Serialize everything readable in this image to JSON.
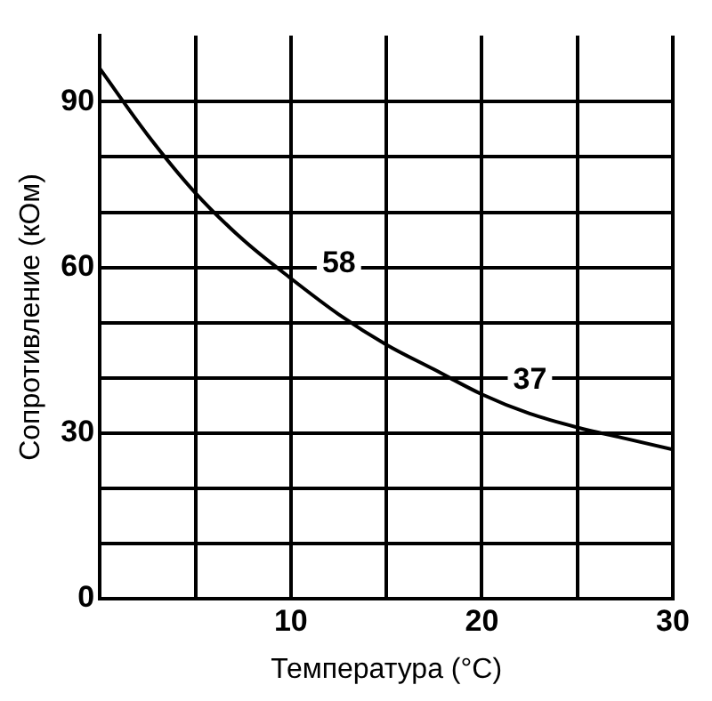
{
  "chart_data": {
    "type": "line",
    "xlabel": "Температура (°C)",
    "ylabel": "Сопротивление (кОм)",
    "x": [
      0,
      2.5,
      5,
      7.5,
      10,
      12.5,
      15,
      17.5,
      20,
      22.5,
      25,
      27.5,
      30
    ],
    "series": [
      {
        "color": "#000000",
        "values": [
          96,
          84,
          73.5,
          65,
          58,
          51.5,
          46,
          41.5,
          37,
          33.5,
          31,
          29,
          27
        ]
      }
    ],
    "xlim": [
      0,
      30
    ],
    "ylim": [
      0,
      102
    ],
    "xticks": [
      {
        "value": 0,
        "label": null
      },
      {
        "value": 5,
        "label": null
      },
      10,
      {
        "value": 15,
        "label": null
      },
      20,
      {
        "value": 25,
        "label": null
      },
      30
    ],
    "yticks": [
      0,
      {
        "value": 10,
        "label": null
      },
      {
        "value": 20,
        "label": null
      },
      30,
      {
        "value": 40,
        "label": null
      },
      {
        "value": 50,
        "label": null
      },
      60,
      {
        "value": 70,
        "label": null
      },
      {
        "value": 80,
        "label": null
      },
      90
    ],
    "grid": true,
    "marker": "none",
    "line_style": "solid",
    "legend": false,
    "annotations": [
      {
        "text": "58",
        "x": 10,
        "y": 58
      },
      {
        "text": "37",
        "x": 20,
        "y": 37
      }
    ]
  }
}
